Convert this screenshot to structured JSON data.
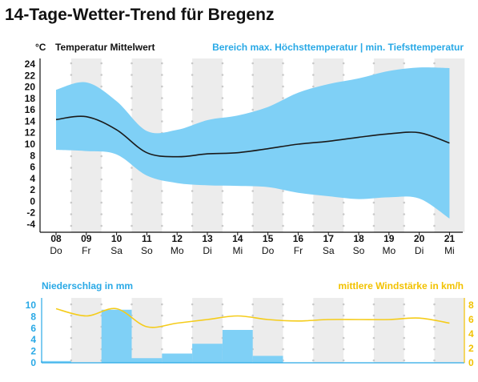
{
  "title": "14-Tage-Wetter-Trend für Bregenz",
  "colors": {
    "band": "#7fd0f6",
    "mean_line": "#1a1a1a",
    "bars": "#7fd0f6",
    "wind_line": "#f5cc1a",
    "blue_text": "#29a9e6",
    "yellow_text": "#f2c200",
    "stripe": "#ececec"
  },
  "chart_data": [
    {
      "type": "area",
      "unit_label": "°C",
      "legend_mean": "Temperatur Mittelwert",
      "legend_range": "Bereich max. Höchsttemperatur | min. Tiefsttemperatur",
      "categories": [
        "08",
        "09",
        "10",
        "11",
        "12",
        "13",
        "14",
        "15",
        "16",
        "17",
        "18",
        "19",
        "20",
        "21"
      ],
      "weekdays": [
        "Do",
        "Fr",
        "Sa",
        "So",
        "Mo",
        "Di",
        "Mi",
        "Do",
        "Fr",
        "Sa",
        "So",
        "Mo",
        "Di",
        "Mi"
      ],
      "ylim": [
        -4,
        24
      ],
      "yticks": [
        -4,
        -2,
        0,
        2,
        4,
        6,
        8,
        10,
        12,
        14,
        16,
        18,
        20,
        22,
        24
      ],
      "series": [
        {
          "name": "Temperatur Mittelwert",
          "values": [
            14.3,
            14.8,
            12.5,
            8.5,
            7.8,
            8.3,
            8.5,
            9.2,
            10.0,
            10.5,
            11.2,
            11.8,
            12.0,
            10.2
          ]
        },
        {
          "name": "max. Höchsttemperatur",
          "values": [
            19.5,
            20.8,
            17.5,
            12.3,
            12.5,
            14.2,
            15.0,
            16.5,
            19.0,
            20.5,
            21.5,
            22.8,
            23.4,
            23.3
          ]
        },
        {
          "name": "min. Tiefsttemperatur",
          "values": [
            9.0,
            8.8,
            8.2,
            4.5,
            3.2,
            2.8,
            2.7,
            2.5,
            1.5,
            0.9,
            0.4,
            0.7,
            0.5,
            -3.0
          ]
        }
      ]
    },
    {
      "type": "bar",
      "left_label": "Niederschlag in mm",
      "right_label": "mittlere Windstärke in km/h",
      "categories": [
        "08",
        "09",
        "10",
        "11",
        "12",
        "13",
        "14",
        "15",
        "16",
        "17",
        "18",
        "19",
        "20",
        "21"
      ],
      "left_ylim": [
        0,
        10
      ],
      "left_yticks": [
        0,
        2,
        4,
        6,
        8,
        10
      ],
      "right_ylim": [
        0,
        8
      ],
      "right_yticks": [
        0,
        2,
        4,
        6,
        8
      ],
      "series": [
        {
          "name": "Niederschlag in mm",
          "values": [
            0.3,
            0,
            9.2,
            0.8,
            1.6,
            3.3,
            5.7,
            1.2,
            0,
            0,
            0,
            0,
            0,
            0
          ]
        },
        {
          "name": "mittlere Windstärke in km/h",
          "values": [
            7.5,
            6.5,
            7.5,
            5.0,
            5.5,
            6.0,
            6.5,
            6.0,
            5.8,
            6.0,
            6.0,
            6.0,
            6.2,
            5.5
          ]
        }
      ]
    }
  ]
}
